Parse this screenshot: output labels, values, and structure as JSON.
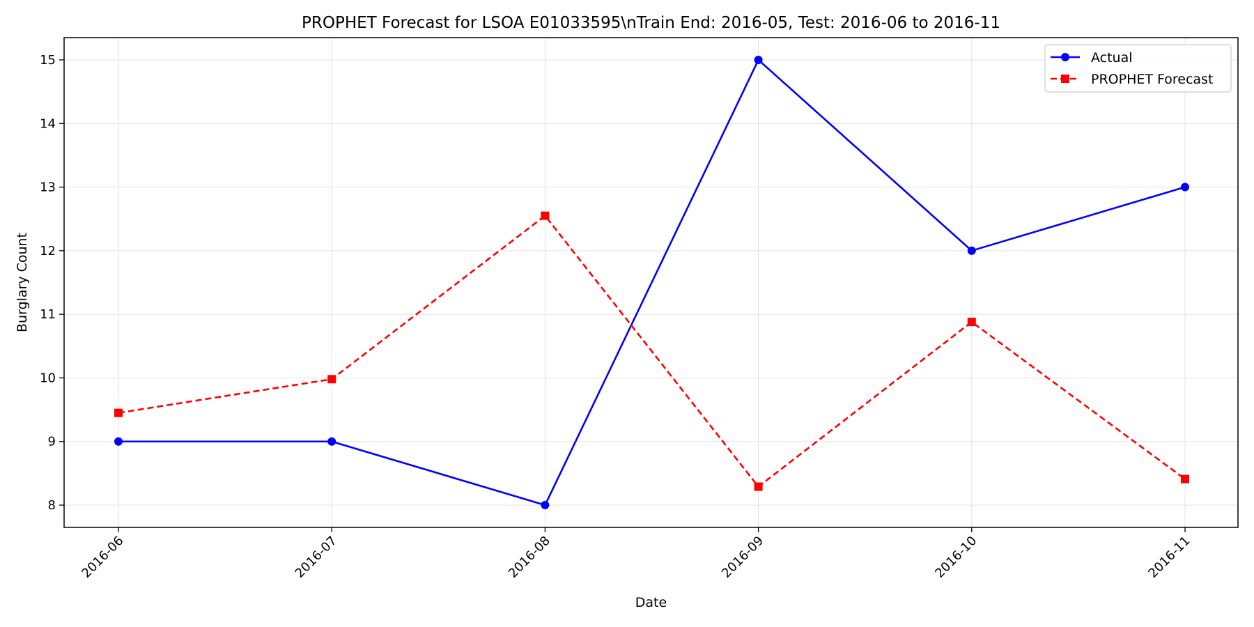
{
  "chart_data": {
    "type": "line",
    "title": "PROPHET Forecast for LSOA E01033595\\nTrain End: 2016-05, Test: 2016-06 to 2016-11",
    "xlabel": "Date",
    "ylabel": "Burglary Count",
    "categories": [
      "2016-06",
      "2016-07",
      "2016-08",
      "2016-09",
      "2016-10",
      "2016-11"
    ],
    "ylim": [
      7.65,
      15.35
    ],
    "yticks": [
      8,
      9,
      10,
      11,
      12,
      13,
      14,
      15
    ],
    "grid": true,
    "legend_position": "top-right",
    "series": [
      {
        "name": "Actual",
        "values": [
          9,
          9,
          8,
          15,
          12,
          13
        ],
        "color": "#0000ff",
        "line_style": "solid",
        "marker": "circle"
      },
      {
        "name": "PROPHET Forecast",
        "values": [
          9.45,
          9.98,
          12.55,
          8.29,
          10.88,
          8.41
        ],
        "color": "#ff0000",
        "line_style": "dashed",
        "marker": "square"
      }
    ]
  }
}
